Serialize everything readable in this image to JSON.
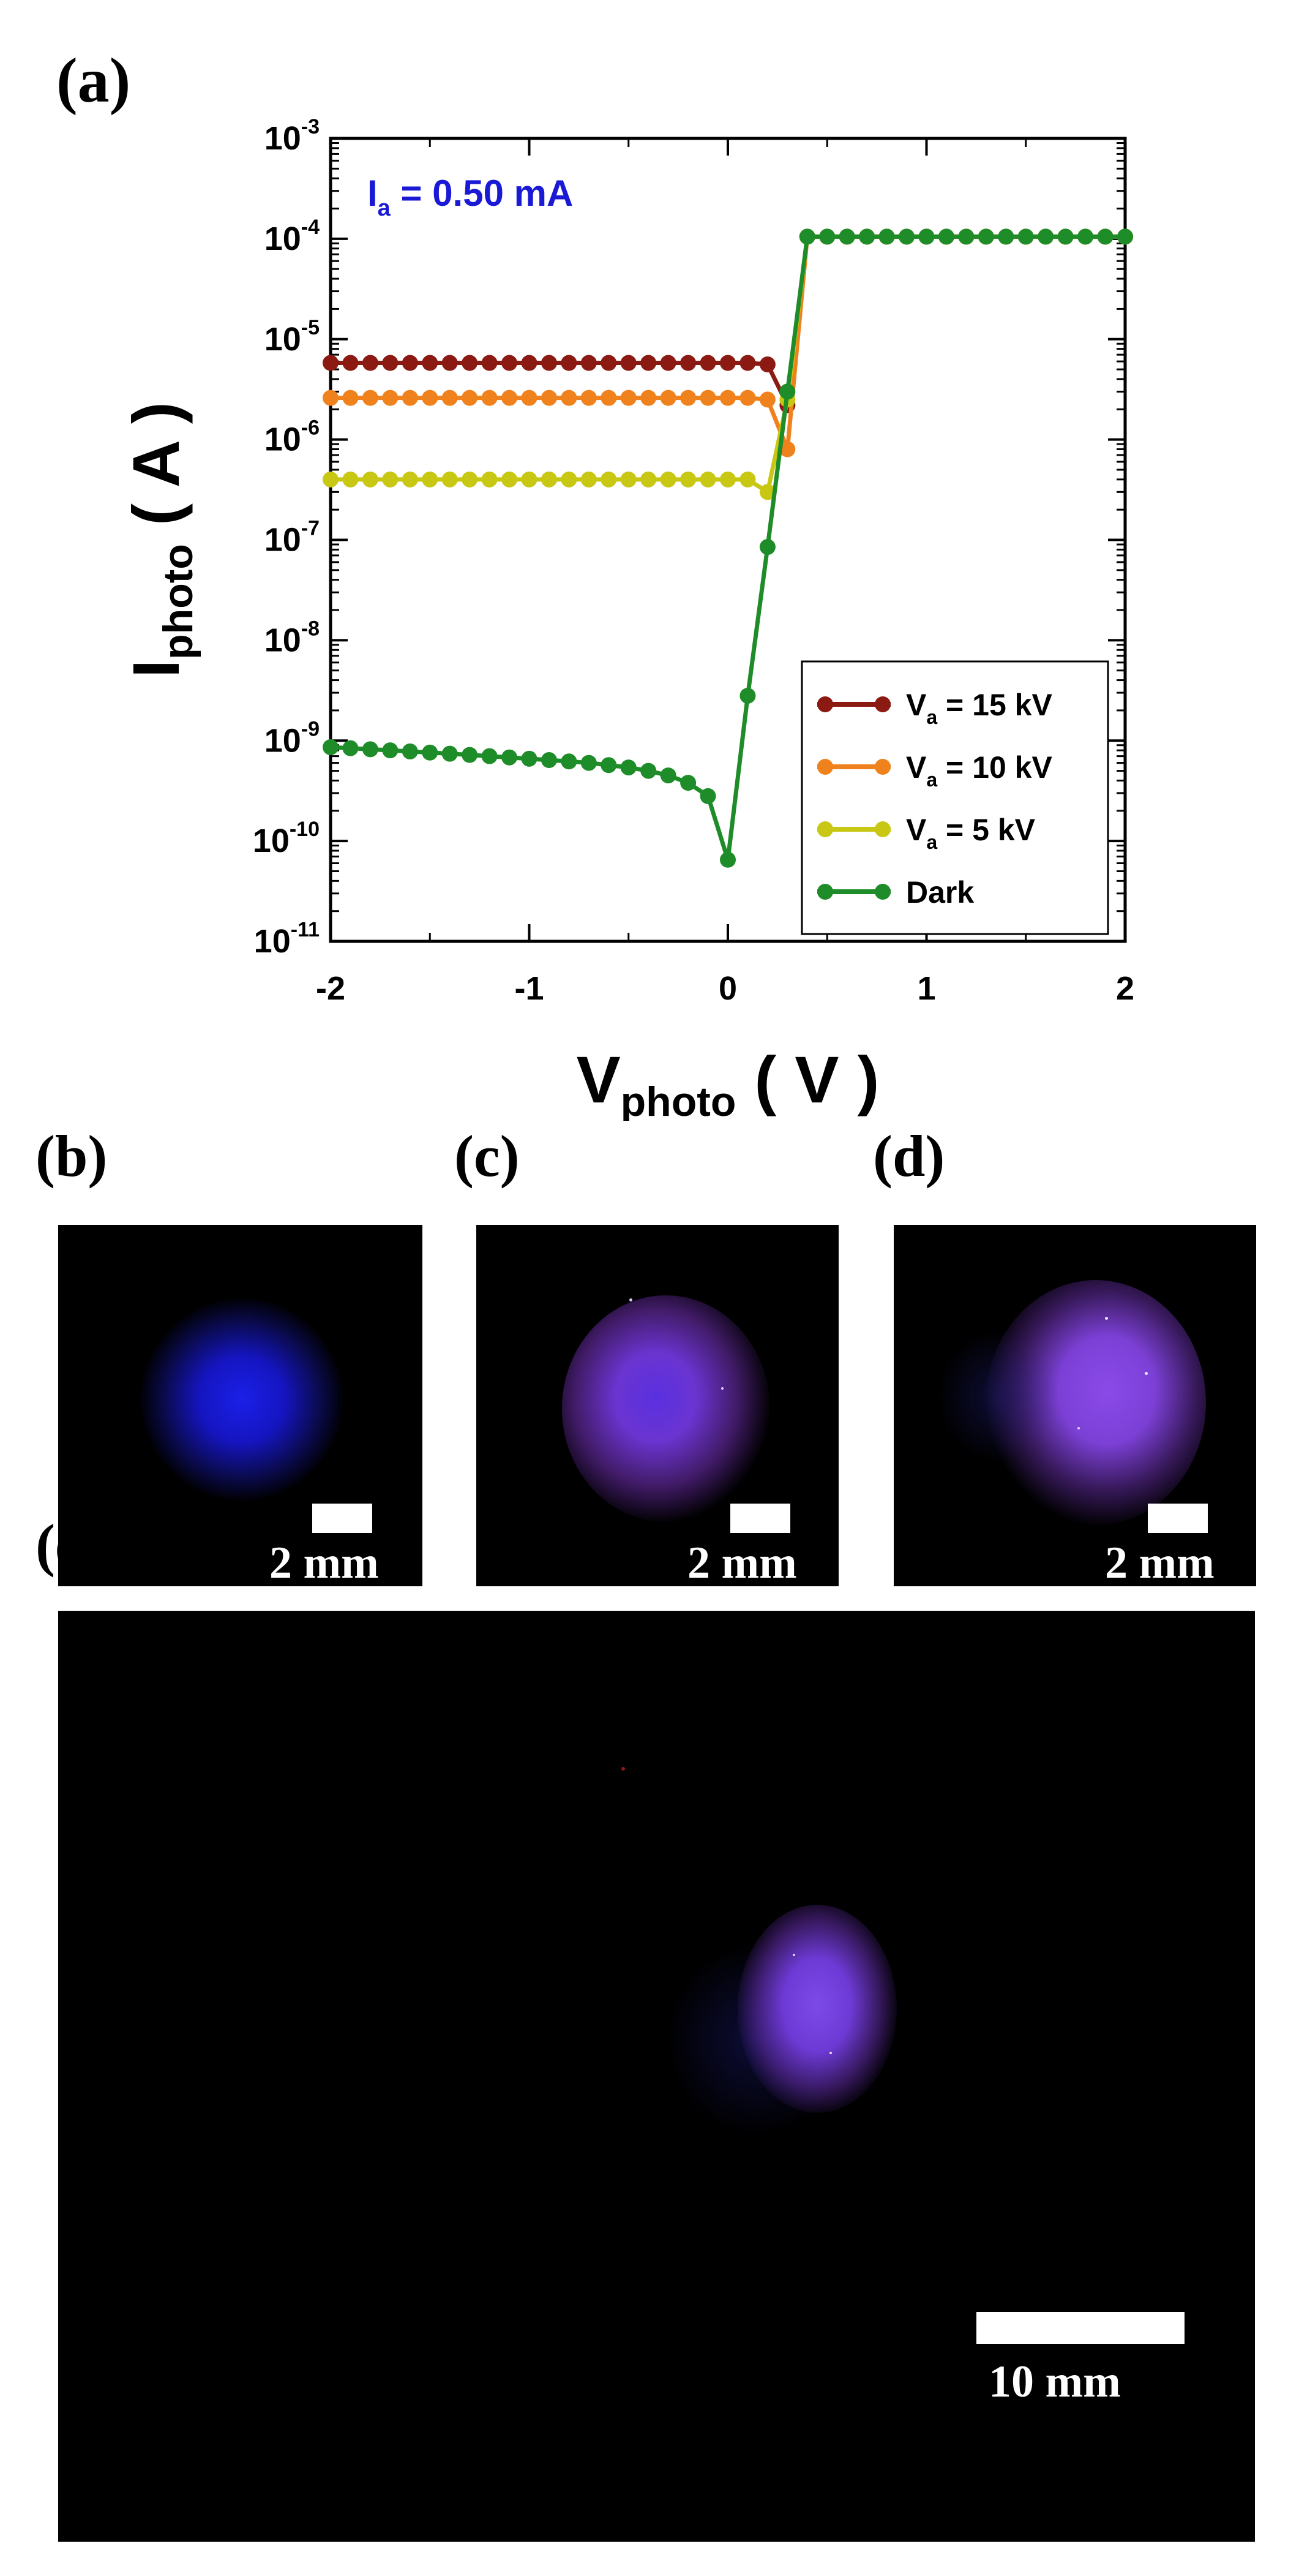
{
  "panels": {
    "a": "(a)",
    "b": "(b)",
    "c": "(c)",
    "d": "(d)",
    "e": "(e)"
  },
  "chart_data": {
    "type": "line",
    "x_scale": "linear",
    "y_scale": "log",
    "xlim": [
      -2,
      2
    ],
    "ylim": [
      1e-11,
      0.001
    ],
    "x_ticks": [
      -2,
      -1,
      0,
      1,
      2
    ],
    "x_tick_labels": [
      "-2",
      "-1",
      "0",
      "1",
      "2"
    ],
    "y_ticks": [
      -11,
      -10,
      -9,
      -8,
      -7,
      -6,
      -5,
      -4,
      -3
    ],
    "xlabel": {
      "main": "V",
      "sub": "photo",
      "unit": " ( V )"
    },
    "ylabel": {
      "main": "I",
      "sub": "photo",
      "unit": " ( A )"
    },
    "annotation": {
      "main": "I",
      "sub": "a",
      "rest": " = 0.50 mA",
      "color": "#1a1ad6"
    },
    "legend_position": "lower-right",
    "grid": false,
    "series": [
      {
        "name": "V_a = 15 kV",
        "label_main": "V",
        "label_sub": "a",
        "label_rest": " = 15 kV",
        "color": "#8b1a12",
        "x": [
          -2,
          -1.9,
          -1.8,
          -1.7,
          -1.6,
          -1.5,
          -1.4,
          -1.3,
          -1.2,
          -1.1,
          -1,
          -0.9,
          -0.8,
          -0.7,
          -0.6,
          -0.5,
          -0.4,
          -0.3,
          -0.2,
          -0.1,
          0,
          0.1,
          0.2,
          0.3,
          0.4,
          0.5,
          0.6,
          0.7,
          0.8,
          0.9,
          1,
          1.1,
          1.2,
          1.3,
          1.4,
          1.5,
          1.6,
          1.7,
          1.8,
          1.9,
          2
        ],
        "y": [
          5.8e-06,
          5.8e-06,
          5.8e-06,
          5.8e-06,
          5.8e-06,
          5.8e-06,
          5.8e-06,
          5.8e-06,
          5.8e-06,
          5.8e-06,
          5.8e-06,
          5.8e-06,
          5.8e-06,
          5.8e-06,
          5.8e-06,
          5.8e-06,
          5.8e-06,
          5.8e-06,
          5.8e-06,
          5.8e-06,
          5.8e-06,
          5.8e-06,
          5.6e-06,
          2.2e-06,
          0.000105,
          0.000105,
          0.000105,
          0.000105,
          0.000105,
          0.000105,
          0.000105,
          0.000105,
          0.000105,
          0.000105,
          0.000105,
          0.000105,
          0.000105,
          0.000105,
          0.000105,
          0.000105,
          0.000105
        ]
      },
      {
        "name": "V_a = 10 kV",
        "label_main": "V",
        "label_sub": "a",
        "label_rest": " = 10 kV",
        "color": "#f0821e",
        "x": [
          -2,
          -1.9,
          -1.8,
          -1.7,
          -1.6,
          -1.5,
          -1.4,
          -1.3,
          -1.2,
          -1.1,
          -1,
          -0.9,
          -0.8,
          -0.7,
          -0.6,
          -0.5,
          -0.4,
          -0.3,
          -0.2,
          -0.1,
          0,
          0.1,
          0.2,
          0.3,
          0.4,
          0.5,
          0.6,
          0.7,
          0.8,
          0.9,
          1,
          1.1,
          1.2,
          1.3,
          1.4,
          1.5,
          1.6,
          1.7,
          1.8,
          1.9,
          2
        ],
        "y": [
          2.6e-06,
          2.6e-06,
          2.6e-06,
          2.6e-06,
          2.6e-06,
          2.6e-06,
          2.6e-06,
          2.6e-06,
          2.6e-06,
          2.6e-06,
          2.6e-06,
          2.6e-06,
          2.6e-06,
          2.6e-06,
          2.6e-06,
          2.6e-06,
          2.6e-06,
          2.6e-06,
          2.6e-06,
          2.6e-06,
          2.6e-06,
          2.6e-06,
          2.5e-06,
          8e-07,
          0.000105,
          0.000105,
          0.000105,
          0.000105,
          0.000105,
          0.000105,
          0.000105,
          0.000105,
          0.000105,
          0.000105,
          0.000105,
          0.000105,
          0.000105,
          0.000105,
          0.000105,
          0.000105,
          0.000105
        ]
      },
      {
        "name": "V_a = 5 kV",
        "label_main": "V",
        "label_sub": "a",
        "label_rest": " = 5 kV",
        "color": "#c8c814",
        "x": [
          -2,
          -1.9,
          -1.8,
          -1.7,
          -1.6,
          -1.5,
          -1.4,
          -1.3,
          -1.2,
          -1.1,
          -1,
          -0.9,
          -0.8,
          -0.7,
          -0.6,
          -0.5,
          -0.4,
          -0.3,
          -0.2,
          -0.1,
          0,
          0.1,
          0.2,
          0.3,
          0.4,
          0.5,
          0.6,
          0.7,
          0.8,
          0.9,
          1,
          1.1,
          1.2,
          1.3,
          1.4,
          1.5,
          1.6,
          1.7,
          1.8,
          1.9,
          2
        ],
        "y": [
          4e-07,
          4e-07,
          4e-07,
          4e-07,
          4e-07,
          4e-07,
          4e-07,
          4e-07,
          4e-07,
          4e-07,
          4e-07,
          4e-07,
          4e-07,
          4e-07,
          4e-07,
          4e-07,
          4e-07,
          4e-07,
          4e-07,
          4e-07,
          4e-07,
          4e-07,
          3e-07,
          2.5e-06,
          0.000105,
          0.000105,
          0.000105,
          0.000105,
          0.000105,
          0.000105,
          0.000105,
          0.000105,
          0.000105,
          0.000105,
          0.000105,
          0.000105,
          0.000105,
          0.000105,
          0.000105,
          0.000105,
          0.000105
        ]
      },
      {
        "name": "Dark",
        "label_main": "Dark",
        "label_sub": "",
        "label_rest": "",
        "color": "#1e8c28",
        "x": [
          -2,
          -1.9,
          -1.8,
          -1.7,
          -1.6,
          -1.5,
          -1.4,
          -1.3,
          -1.2,
          -1.1,
          -1,
          -0.9,
          -0.8,
          -0.7,
          -0.6,
          -0.5,
          -0.4,
          -0.3,
          -0.2,
          -0.1,
          0,
          0.1,
          0.2,
          0.3,
          0.4,
          0.5,
          0.6,
          0.7,
          0.8,
          0.9,
          1,
          1.1,
          1.2,
          1.3,
          1.4,
          1.5,
          1.6,
          1.7,
          1.8,
          1.9,
          2
        ],
        "y": [
          8.6e-10,
          8.4e-10,
          8.2e-10,
          8e-10,
          7.8e-10,
          7.6e-10,
          7.4e-10,
          7.2e-10,
          7e-10,
          6.8e-10,
          6.6e-10,
          6.4e-10,
          6.2e-10,
          6e-10,
          5.7e-10,
          5.4e-10,
          5e-10,
          4.5e-10,
          3.8e-10,
          2.8e-10,
          6.5e-11,
          2.8e-09,
          8.5e-08,
          3e-06,
          0.000105,
          0.000105,
          0.000105,
          0.000105,
          0.000105,
          0.000105,
          0.000105,
          0.000105,
          0.000105,
          0.000105,
          0.000105,
          0.000105,
          0.000105,
          0.000105,
          0.000105,
          0.000105,
          0.000105
        ]
      }
    ]
  },
  "photos": {
    "b": {
      "scale_label": "2 mm",
      "glow_color": "#1a1adc"
    },
    "c": {
      "scale_label": "2 mm",
      "glow_color": "#7a3ad8"
    },
    "d": {
      "scale_label": "2 mm",
      "glow_color": "#9a4ae0"
    },
    "e": {
      "scale_label": "10 mm",
      "glow_color": "#8a3ae0"
    }
  }
}
